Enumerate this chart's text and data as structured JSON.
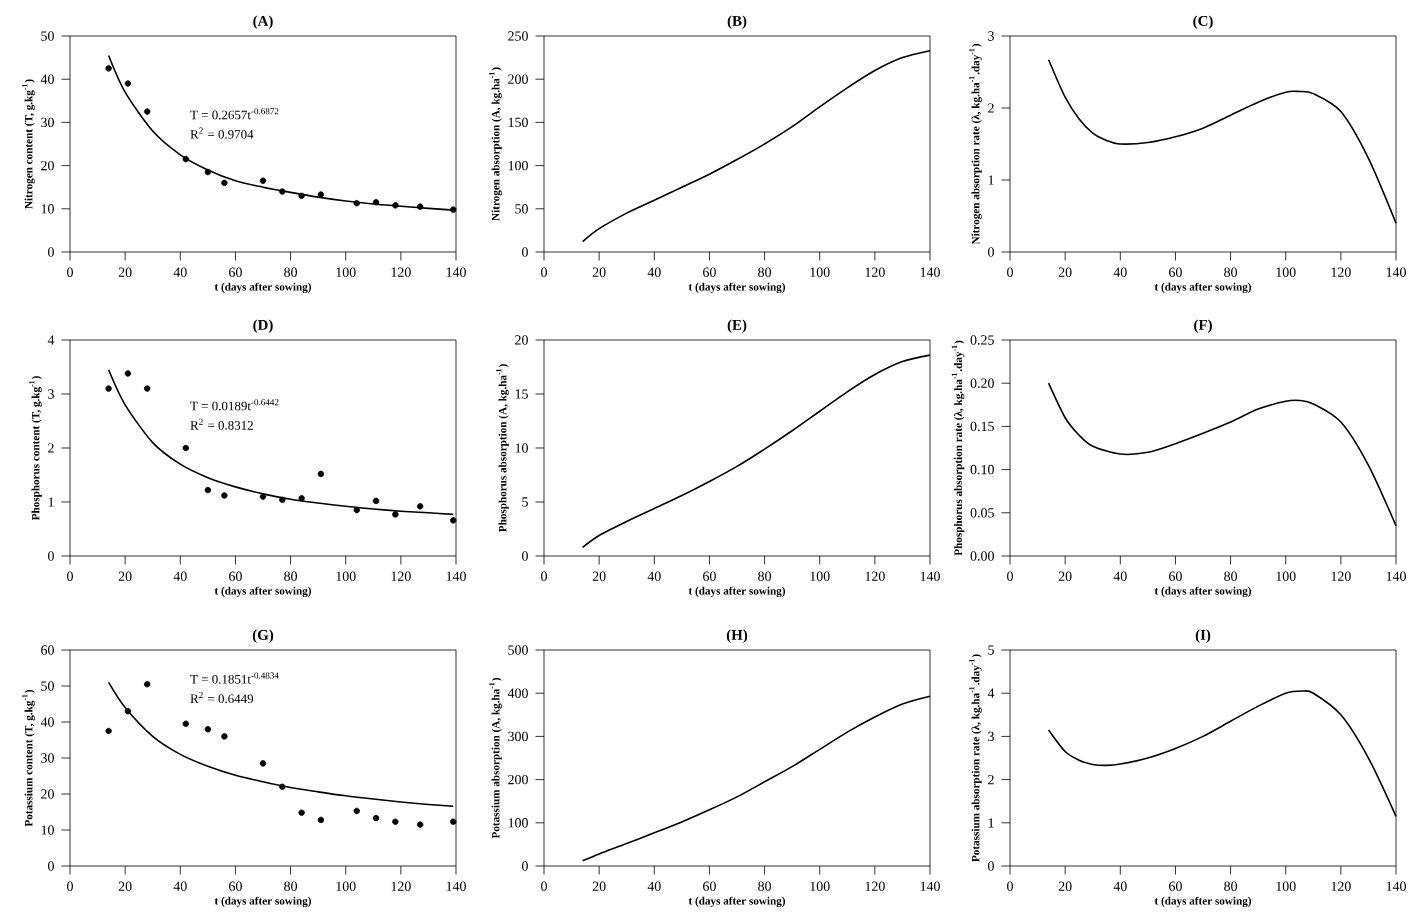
{
  "chart_data": [
    {
      "type": "scatter",
      "title": "(A)",
      "xlabel": "t (days after sowing)",
      "ylabel": "Nitrogen content (T, g.kg$^{-1}$)",
      "xlim": [
        0,
        140
      ],
      "xticks": [
        0,
        20,
        40,
        60,
        80,
        100,
        120,
        140
      ],
      "ylim": [
        0,
        50
      ],
      "yticks": [
        0,
        10,
        20,
        30,
        40,
        50
      ],
      "annotations": [
        "T = 0.2657t$^{-0.6872}$",
        "R$^{2}$ = 0.9704"
      ],
      "series": [
        {
          "type": "scatter",
          "marker": "circle",
          "color": "#000000",
          "x": [
            14,
            21,
            28,
            42,
            50,
            56,
            70,
            77,
            84,
            91,
            104,
            111,
            118,
            127,
            139
          ],
          "values": [
            42.5,
            39,
            32.5,
            21.5,
            18.5,
            16,
            16.5,
            14,
            13,
            13.3,
            11.3,
            11.5,
            10.8,
            10.5,
            9.8
          ]
        },
        {
          "type": "line",
          "color": "#000000",
          "x": [
            14,
            20,
            30,
            40,
            50,
            60,
            70,
            80,
            90,
            100,
            110,
            120,
            130,
            139
          ],
          "values": [
            45.5,
            37,
            28,
            22.5,
            19,
            16.5,
            15,
            13.8,
            12.7,
            11.8,
            11.1,
            10.6,
            10.1,
            9.7
          ]
        }
      ]
    },
    {
      "type": "line",
      "title": "(B)",
      "xlabel": "t (days after sowing)",
      "ylabel": "Nitrogen absorption (A, kg.ha$^{-1}$)",
      "xlim": [
        0,
        140
      ],
      "xticks": [
        0,
        20,
        40,
        60,
        80,
        100,
        120,
        140
      ],
      "ylim": [
        0,
        250
      ],
      "yticks": [
        0,
        50,
        100,
        150,
        200,
        250
      ],
      "series": [
        {
          "color": "#000000",
          "x": [
            14,
            20,
            30,
            40,
            50,
            60,
            70,
            80,
            90,
            100,
            110,
            120,
            130,
            140
          ],
          "values": [
            12,
            27,
            45,
            60,
            75,
            90,
            107,
            125,
            145,
            168,
            190,
            210,
            225,
            233
          ]
        }
      ]
    },
    {
      "type": "line",
      "title": "(C)",
      "xlabel": "t (days after sowing)",
      "ylabel": "Nitrogen absorption rate (λ, kg.ha$^{-1}$.day$^{-1}$)",
      "xlim": [
        0,
        140
      ],
      "xticks": [
        0,
        20,
        40,
        60,
        80,
        100,
        120,
        140
      ],
      "ylim": [
        0,
        3
      ],
      "yticks": [
        0,
        1,
        2,
        3
      ],
      "series": [
        {
          "color": "#000000",
          "x": [
            14,
            20,
            25,
            30,
            35,
            40,
            50,
            60,
            70,
            80,
            90,
            100,
            105,
            110,
            120,
            130,
            140
          ],
          "values": [
            2.67,
            2.15,
            1.85,
            1.65,
            1.55,
            1.5,
            1.52,
            1.6,
            1.72,
            1.9,
            2.08,
            2.22,
            2.23,
            2.2,
            1.95,
            1.3,
            0.4
          ]
        }
      ]
    },
    {
      "type": "scatter",
      "title": "(D)",
      "xlabel": "t (days after sowing)",
      "ylabel": "Phosphorus content (T, g.kg$^{-1}$)",
      "xlim": [
        0,
        140
      ],
      "xticks": [
        0,
        20,
        40,
        60,
        80,
        100,
        120,
        140
      ],
      "ylim": [
        0,
        4
      ],
      "yticks": [
        0,
        1,
        2,
        3,
        4
      ],
      "annotations": [
        "T = 0.0189t$^{-0.6442}$",
        "R$^{2}$ = 0.8312"
      ],
      "series": [
        {
          "type": "scatter",
          "marker": "circle",
          "color": "#000000",
          "x": [
            14,
            21,
            28,
            42,
            50,
            56,
            70,
            77,
            84,
            91,
            104,
            111,
            118,
            127,
            139
          ],
          "values": [
            3.1,
            3.38,
            3.1,
            2.0,
            1.22,
            1.12,
            1.1,
            1.04,
            1.07,
            1.52,
            0.85,
            1.02,
            0.77,
            0.92,
            0.66
          ]
        },
        {
          "type": "line",
          "color": "#000000",
          "x": [
            14,
            20,
            30,
            40,
            50,
            60,
            70,
            80,
            90,
            100,
            110,
            120,
            130,
            139
          ],
          "values": [
            3.45,
            2.8,
            2.1,
            1.7,
            1.45,
            1.28,
            1.15,
            1.05,
            0.98,
            0.92,
            0.87,
            0.83,
            0.8,
            0.77
          ]
        }
      ]
    },
    {
      "type": "line",
      "title": "(E)",
      "xlabel": "t (days after sowing)",
      "ylabel": "Phosphorus absorption (A, kg.ha$^{-1}$)",
      "xlim": [
        0,
        140
      ],
      "xticks": [
        0,
        20,
        40,
        60,
        80,
        100,
        120,
        140
      ],
      "ylim": [
        0,
        20
      ],
      "yticks": [
        0,
        5,
        10,
        15,
        20
      ],
      "series": [
        {
          "color": "#000000",
          "x": [
            14,
            20,
            30,
            40,
            50,
            60,
            70,
            80,
            90,
            100,
            110,
            120,
            130,
            140
          ],
          "values": [
            0.8,
            1.9,
            3.2,
            4.4,
            5.6,
            6.9,
            8.3,
            9.9,
            11.6,
            13.4,
            15.2,
            16.8,
            18.0,
            18.6
          ]
        }
      ]
    },
    {
      "type": "line",
      "title": "(F)",
      "xlabel": "t (days after sowing)",
      "ylabel": "Phosphorus absorption rate (λ, kg.ha$^{-1}$.day$^{-1}$)",
      "xlim": [
        0,
        140
      ],
      "xticks": [
        0,
        20,
        40,
        60,
        80,
        100,
        120,
        140
      ],
      "ylim": [
        0,
        0.25
      ],
      "yticks": [
        {
          "value": 0,
          "label": "0.00"
        },
        {
          "value": 0.05,
          "label": "0.05"
        },
        {
          "value": 0.1,
          "label": "0.10"
        },
        {
          "value": 0.15,
          "label": "0.15"
        },
        {
          "value": 0.2,
          "label": "0.20"
        },
        {
          "value": 0.25,
          "label": "0.25"
        }
      ],
      "series": [
        {
          "color": "#000000",
          "x": [
            14,
            20,
            25,
            30,
            40,
            50,
            60,
            70,
            80,
            90,
            100,
            105,
            110,
            120,
            130,
            140
          ],
          "values": [
            0.2,
            0.16,
            0.14,
            0.127,
            0.118,
            0.12,
            0.13,
            0.142,
            0.155,
            0.17,
            0.179,
            0.18,
            0.176,
            0.155,
            0.105,
            0.035
          ]
        }
      ]
    },
    {
      "type": "scatter",
      "title": "(G)",
      "xlabel": "t (days after sowing)",
      "ylabel": "Potassium content (T, g.kg$^{-1}$)",
      "xlim": [
        0,
        140
      ],
      "xticks": [
        0,
        20,
        40,
        60,
        80,
        100,
        120,
        140
      ],
      "ylim": [
        0,
        60
      ],
      "yticks": [
        0,
        10,
        20,
        30,
        40,
        50,
        60
      ],
      "annotations": [
        "T = 0.1851t$^{-0.4834}$",
        "R$^{2}$ = 0.6449"
      ],
      "series": [
        {
          "type": "scatter",
          "marker": "circle",
          "color": "#000000",
          "x": [
            14,
            21,
            28,
            42,
            50,
            56,
            70,
            77,
            84,
            91,
            104,
            111,
            118,
            127,
            139
          ],
          "values": [
            37.5,
            43,
            50.5,
            39.5,
            38,
            36,
            28.5,
            22,
            14.8,
            12.8,
            15.3,
            13.3,
            12.3,
            11.5,
            12.3
          ]
        },
        {
          "type": "line",
          "color": "#000000",
          "x": [
            14,
            20,
            30,
            40,
            50,
            60,
            70,
            80,
            90,
            100,
            110,
            120,
            130,
            139
          ],
          "values": [
            51,
            44,
            36,
            31,
            27.7,
            25.2,
            23.4,
            21.8,
            20.6,
            19.5,
            18.6,
            17.8,
            17.1,
            16.6
          ]
        }
      ]
    },
    {
      "type": "line",
      "title": "(H)",
      "xlabel": "t (days after sowing)",
      "ylabel": "Potassium absorption (A, kg.ha$^{-1}$)",
      "xlim": [
        0,
        140
      ],
      "xticks": [
        0,
        20,
        40,
        60,
        80,
        100,
        120,
        140
      ],
      "ylim": [
        0,
        500
      ],
      "yticks": [
        0,
        100,
        200,
        300,
        400,
        500
      ],
      "series": [
        {
          "color": "#000000",
          "x": [
            14,
            20,
            30,
            40,
            50,
            60,
            70,
            80,
            90,
            100,
            110,
            120,
            130,
            140
          ],
          "values": [
            12,
            28,
            52,
            77,
            102,
            130,
            160,
            195,
            230,
            270,
            310,
            345,
            375,
            393
          ]
        }
      ]
    },
    {
      "type": "line",
      "title": "(I)",
      "xlabel": "t (days after sowing)",
      "ylabel": "Potassium absorption rate (λ, kg.ha$^{-1}$.day$^{-1}$)",
      "xlim": [
        0,
        140
      ],
      "xticks": [
        0,
        20,
        40,
        60,
        80,
        100,
        120,
        140
      ],
      "ylim": [
        0,
        5
      ],
      "yticks": [
        0,
        1,
        2,
        3,
        4,
        5
      ],
      "series": [
        {
          "color": "#000000",
          "x": [
            14,
            20,
            25,
            30,
            35,
            40,
            50,
            60,
            70,
            80,
            90,
            100,
            106,
            110,
            120,
            130,
            140
          ],
          "values": [
            3.15,
            2.65,
            2.45,
            2.35,
            2.33,
            2.36,
            2.5,
            2.72,
            3.0,
            3.35,
            3.7,
            4.0,
            4.05,
            4.0,
            3.5,
            2.5,
            1.15
          ]
        }
      ]
    }
  ]
}
